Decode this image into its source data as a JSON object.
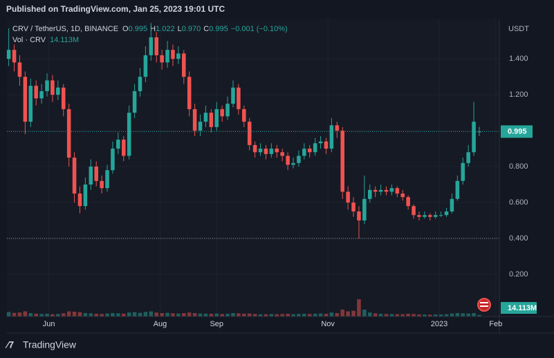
{
  "published": "Published on TradingView.com, Jan 25, 2023 19:01 UTC",
  "brand": "TradingView",
  "chart_data": {
    "type": "candlestick",
    "symbol": "CRV / TetherUS, 1D, BINANCE",
    "ohlc_legend": [
      {
        "key": "O",
        "label": "0.995"
      },
      {
        "key": "H",
        "label": "1.022"
      },
      {
        "key": "L",
        "label": "0.970"
      },
      {
        "key": "C",
        "label": "0.995"
      }
    ],
    "change_label": "−0.001 (−0.10%)",
    "volume_title": "Vol · CRV",
    "volume_label": "14.113M",
    "currency": "USDT",
    "up_color": "#26a69a",
    "down_color": "#ef5350",
    "x": [
      0,
      3,
      6,
      9,
      12,
      15,
      18,
      21,
      24,
      27,
      30,
      33,
      36,
      39,
      42,
      45,
      48,
      51,
      54,
      57,
      60,
      63,
      66,
      69,
      72,
      75,
      78,
      81,
      84,
      87,
      90,
      93,
      96,
      99,
      102,
      105,
      108,
      111,
      114,
      117,
      120,
      123,
      126,
      129,
      132,
      135,
      138,
      141,
      144,
      147,
      150,
      153,
      156,
      159,
      162,
      165,
      168,
      171,
      174,
      177,
      180,
      183,
      186,
      189,
      192,
      195,
      198,
      201,
      204,
      207,
      210,
      213,
      216,
      219,
      222,
      225,
      228,
      231,
      234,
      237,
      240,
      243,
      246,
      249,
      252,
      255,
      258
    ],
    "candles": [
      [
        1.4,
        1.57,
        1.36,
        1.45
      ],
      [
        1.45,
        1.48,
        1.33,
        1.38
      ],
      [
        1.38,
        1.42,
        1.25,
        1.3
      ],
      [
        1.3,
        1.33,
        0.98,
        1.05
      ],
      [
        1.05,
        1.29,
        1.02,
        1.25
      ],
      [
        1.25,
        1.28,
        1.14,
        1.18
      ],
      [
        1.18,
        1.26,
        1.15,
        1.22
      ],
      [
        1.22,
        1.32,
        1.19,
        1.28
      ],
      [
        1.28,
        1.31,
        1.16,
        1.2
      ],
      [
        1.2,
        1.28,
        1.17,
        1.24
      ],
      [
        1.24,
        1.26,
        1.08,
        1.12
      ],
      [
        1.12,
        1.15,
        0.8,
        0.85
      ],
      [
        0.85,
        0.88,
        0.6,
        0.65
      ],
      [
        0.65,
        0.69,
        0.54,
        0.58
      ],
      [
        0.58,
        0.74,
        0.56,
        0.7
      ],
      [
        0.7,
        0.84,
        0.67,
        0.8
      ],
      [
        0.8,
        0.83,
        0.69,
        0.72
      ],
      [
        0.72,
        0.75,
        0.65,
        0.68
      ],
      [
        0.68,
        0.81,
        0.66,
        0.78
      ],
      [
        0.78,
        0.94,
        0.76,
        0.9
      ],
      [
        0.9,
        0.99,
        0.87,
        0.95
      ],
      [
        0.95,
        0.97,
        0.83,
        0.86
      ],
      [
        0.86,
        1.14,
        0.84,
        1.1
      ],
      [
        1.1,
        1.26,
        1.07,
        1.22
      ],
      [
        1.22,
        1.35,
        1.19,
        1.3
      ],
      [
        1.3,
        1.47,
        1.27,
        1.42
      ],
      [
        1.42,
        1.6,
        1.39,
        1.52
      ],
      [
        1.52,
        1.55,
        1.38,
        1.42
      ],
      [
        1.42,
        1.45,
        1.34,
        1.38
      ],
      [
        1.38,
        1.5,
        1.35,
        1.45
      ],
      [
        1.45,
        1.48,
        1.36,
        1.4
      ],
      [
        1.4,
        1.47,
        1.37,
        1.43
      ],
      [
        1.43,
        1.45,
        1.26,
        1.3
      ],
      [
        1.3,
        1.33,
        1.08,
        1.12
      ],
      [
        1.12,
        1.15,
        0.97,
        1.0
      ],
      [
        1.0,
        1.09,
        0.97,
        1.05
      ],
      [
        1.05,
        1.14,
        1.02,
        1.1
      ],
      [
        1.1,
        1.12,
        0.99,
        1.02
      ],
      [
        1.02,
        1.16,
        1.0,
        1.12
      ],
      [
        1.12,
        1.14,
        1.05,
        1.08
      ],
      [
        1.08,
        1.19,
        1.06,
        1.15
      ],
      [
        1.15,
        1.28,
        1.13,
        1.24
      ],
      [
        1.24,
        1.26,
        1.09,
        1.12
      ],
      [
        1.12,
        1.14,
        1.02,
        1.05
      ],
      [
        1.05,
        1.07,
        0.89,
        0.92
      ],
      [
        0.92,
        0.94,
        0.85,
        0.88
      ],
      [
        0.88,
        0.93,
        0.86,
        0.9
      ],
      [
        0.9,
        0.92,
        0.84,
        0.87
      ],
      [
        0.87,
        0.93,
        0.85,
        0.9
      ],
      [
        0.9,
        0.92,
        0.85,
        0.88
      ],
      [
        0.88,
        0.9,
        0.83,
        0.86
      ],
      [
        0.86,
        0.88,
        0.78,
        0.81
      ],
      [
        0.81,
        0.85,
        0.79,
        0.82
      ],
      [
        0.82,
        0.89,
        0.8,
        0.86
      ],
      [
        0.86,
        0.93,
        0.84,
        0.9
      ],
      [
        0.9,
        0.92,
        0.85,
        0.88
      ],
      [
        0.88,
        0.96,
        0.86,
        0.93
      ],
      [
        0.93,
        0.97,
        0.9,
        0.94
      ],
      [
        0.94,
        0.96,
        0.87,
        0.9
      ],
      [
        0.9,
        1.07,
        0.88,
        1.03
      ],
      [
        1.03,
        1.05,
        0.96,
        1.0
      ],
      [
        1.0,
        1.02,
        0.62,
        0.66
      ],
      [
        0.66,
        0.69,
        0.56,
        0.6
      ],
      [
        0.6,
        0.63,
        0.52,
        0.55
      ],
      [
        0.55,
        0.58,
        0.4,
        0.5
      ],
      [
        0.5,
        0.75,
        0.48,
        0.62
      ],
      [
        0.62,
        0.7,
        0.6,
        0.67
      ],
      [
        0.67,
        0.69,
        0.63,
        0.66
      ],
      [
        0.66,
        0.7,
        0.64,
        0.67
      ],
      [
        0.67,
        0.69,
        0.64,
        0.66
      ],
      [
        0.66,
        0.7,
        0.64,
        0.68
      ],
      [
        0.68,
        0.69,
        0.63,
        0.65
      ],
      [
        0.65,
        0.67,
        0.61,
        0.63
      ],
      [
        0.63,
        0.64,
        0.56,
        0.58
      ],
      [
        0.58,
        0.59,
        0.51,
        0.53
      ],
      [
        0.53,
        0.55,
        0.5,
        0.52
      ],
      [
        0.52,
        0.55,
        0.51,
        0.53
      ],
      [
        0.53,
        0.54,
        0.5,
        0.52
      ],
      [
        0.52,
        0.55,
        0.51,
        0.53
      ],
      [
        0.53,
        0.55,
        0.52,
        0.53
      ],
      [
        0.53,
        0.57,
        0.52,
        0.55
      ],
      [
        0.55,
        0.65,
        0.54,
        0.62
      ],
      [
        0.62,
        0.75,
        0.61,
        0.72
      ],
      [
        0.72,
        0.85,
        0.7,
        0.82
      ],
      [
        0.82,
        0.92,
        0.8,
        0.88
      ],
      [
        0.88,
        1.16,
        0.86,
        1.05
      ],
      [
        0.995,
        1.022,
        0.97,
        0.995
      ]
    ],
    "volumes": [
      40,
      32,
      35,
      45,
      30,
      25,
      22,
      24,
      20,
      22,
      28,
      45,
      42,
      38,
      30,
      28,
      24,
      22,
      26,
      30,
      28,
      25,
      35,
      38,
      32,
      40,
      45,
      35,
      30,
      32,
      28,
      26,
      30,
      35,
      30,
      26,
      25,
      24,
      26,
      22,
      24,
      30,
      28,
      25,
      26,
      22,
      20,
      20,
      22,
      20,
      22,
      24,
      20,
      22,
      24,
      22,
      25,
      26,
      24,
      35,
      30,
      60,
      45,
      50,
      150,
      60,
      35,
      28,
      24,
      22,
      22,
      20,
      20,
      24,
      22,
      18,
      18,
      16,
      18,
      18,
      20,
      26,
      30,
      28,
      26,
      30,
      14.113
    ],
    "vol_lim": [
      0,
      600
    ],
    "xlim": [
      -1,
      269
    ],
    "xticks": [
      {
        "value": 22,
        "label": "Jun"
      },
      {
        "value": 83,
        "label": "Aug"
      },
      {
        "value": 114,
        "label": "Sep"
      },
      {
        "value": 175,
        "label": "Nov"
      },
      {
        "value": 236,
        "label": "2023"
      },
      {
        "value": 267,
        "label": "Feb"
      }
    ],
    "ylim": [
      -0.035,
      1.62
    ],
    "yticks": [
      {
        "value": 0.2,
        "label": "0.200"
      },
      {
        "value": 0.4,
        "label": "0.400"
      },
      {
        "value": 0.6,
        "label": "0.600"
      },
      {
        "value": 0.8,
        "label": "0.800"
      },
      {
        "value": 1.0,
        "label": "1.000"
      },
      {
        "value": 1.2,
        "label": "1.200"
      },
      {
        "value": 1.4,
        "label": "1.400"
      }
    ],
    "price_line": 0.4,
    "grid": true
  }
}
